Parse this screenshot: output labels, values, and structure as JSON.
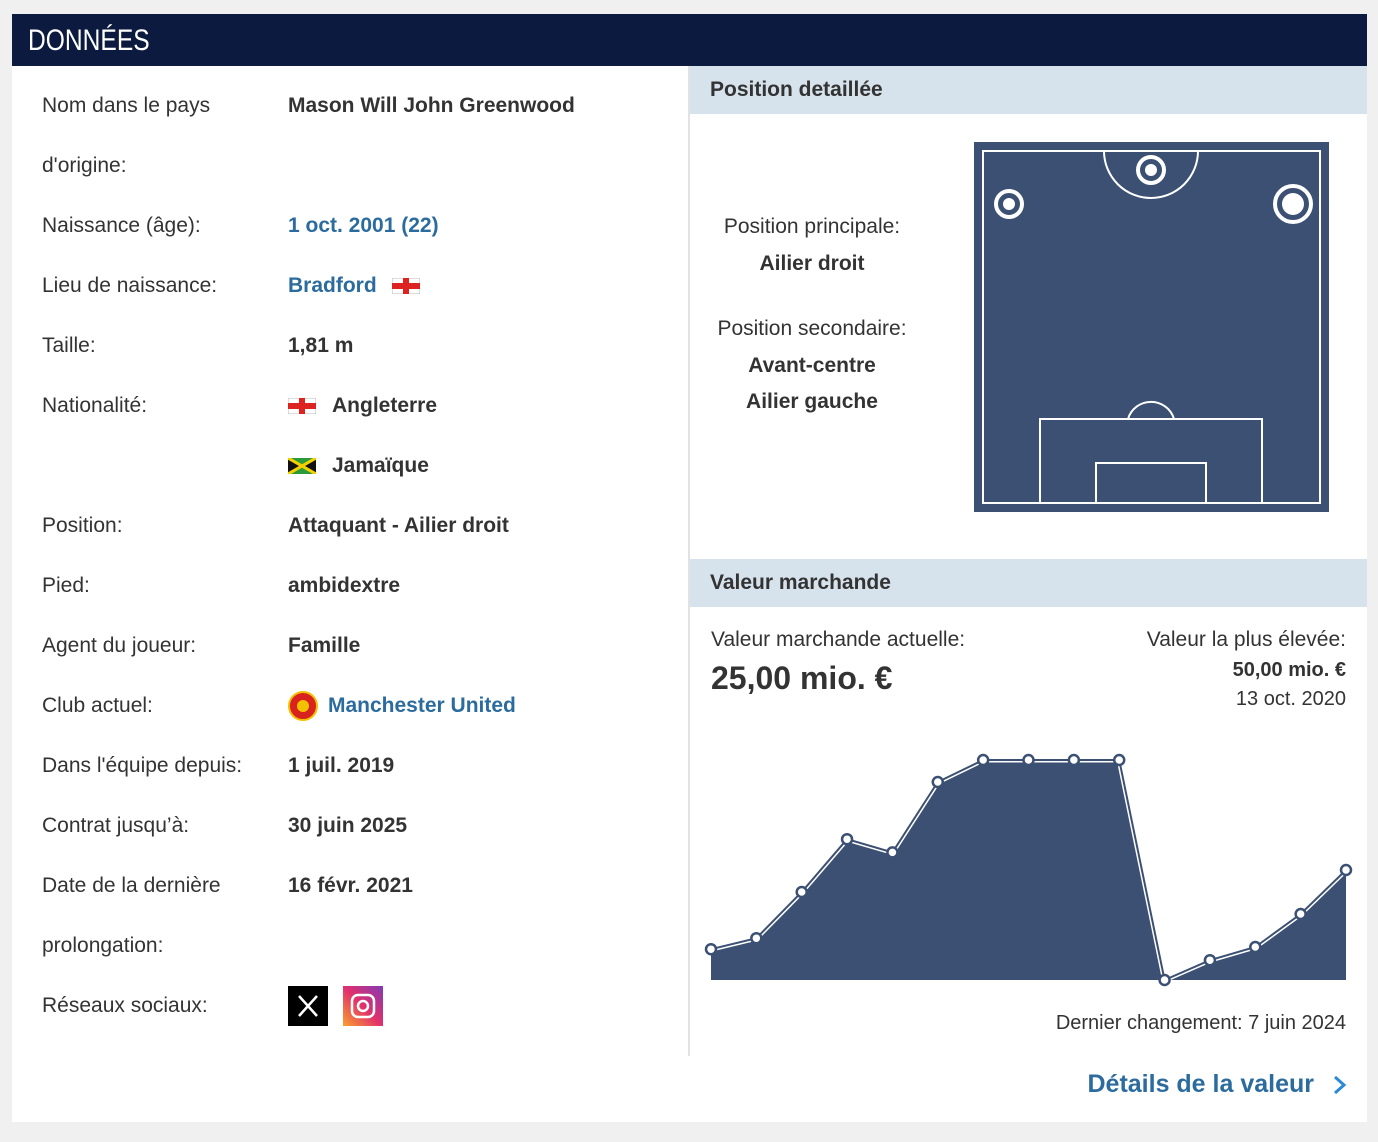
{
  "header": {
    "title": "DONNÉES"
  },
  "profile": {
    "name_label": "Nom dans le pays d'origine:",
    "name": "Mason Will John Greenwood",
    "birth_label": "Naissance (âge):",
    "birth": "1 oct. 2001 (22)",
    "birthplace_label": "Lieu de naissance:",
    "birthplace": "Bradford",
    "height_label": "Taille:",
    "height": "1,81 m",
    "nationality_label": "Nationalité:",
    "nationalities": [
      "Angleterre",
      "Jamaïque"
    ],
    "position_label": "Position:",
    "position": "Attaquant - Ailier droit",
    "foot_label": "Pied:",
    "foot": "ambidextre",
    "agent_label": "Agent du joueur:",
    "agent": "Famille",
    "club_label": "Club actuel:",
    "club": "Manchester United",
    "joined_label": "Dans l'équipe depuis:",
    "joined": "1 juil. 2019",
    "contract_label": "Contrat jusqu’à:",
    "contract": "30 juin 2025",
    "extension_label": "Date de la dernière prolongation:",
    "extension": "16 févr. 2021",
    "social_label": "Réseaux sociaux:"
  },
  "position": {
    "title": "Position detaillée",
    "main_label": "Position principale:",
    "main": "Ailier droit",
    "secondary_label": "Position secondaire:",
    "secondary": [
      "Avant-centre",
      "Ailier gauche"
    ]
  },
  "market_value": {
    "title": "Valeur marchande",
    "current_label": "Valeur marchande actuelle:",
    "current": "25,00 mio. €",
    "highest_label": "Valeur la plus élevée:",
    "highest": "50,00 mio. €",
    "highest_date": "13 oct. 2020",
    "last_change": "Dernier changement: 7 juin 2024",
    "details_link": "Détails de la valeur",
    "chart_data": {
      "type": "area",
      "values": [
        7,
        9.5,
        20,
        32,
        29,
        45,
        50,
        50,
        50,
        50,
        0,
        4.5,
        7.5,
        15,
        25
      ],
      "ylim": [
        0,
        50
      ],
      "color": "#3b5073"
    }
  }
}
